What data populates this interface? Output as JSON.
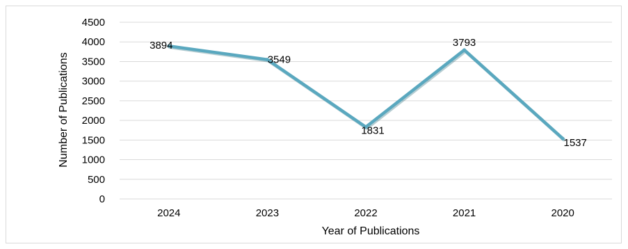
{
  "chart_data": {
    "type": "line",
    "title": "",
    "xlabel": "Year of Publications",
    "ylabel": "Number of Publications",
    "categories": [
      "2024",
      "2023",
      "2022",
      "2021",
      "2020"
    ],
    "values": [
      3894,
      3549,
      1831,
      3793,
      1537
    ],
    "data_labels": [
      "3894",
      "3549",
      "1831",
      "3793",
      "1537"
    ],
    "yticks": [
      0,
      500,
      1000,
      1500,
      2000,
      2500,
      3000,
      3500,
      4000,
      4500
    ],
    "ytick_labels": [
      "0",
      "500",
      "1000",
      "1500",
      "2000",
      "2500",
      "3000",
      "3500",
      "4000",
      "4500"
    ],
    "ylim": [
      0,
      4500
    ],
    "grid": "horizontal",
    "legend": "none",
    "colors": {
      "line": "#5aa8bf",
      "grid": "#d9d9d9",
      "text": "#000000"
    }
  }
}
